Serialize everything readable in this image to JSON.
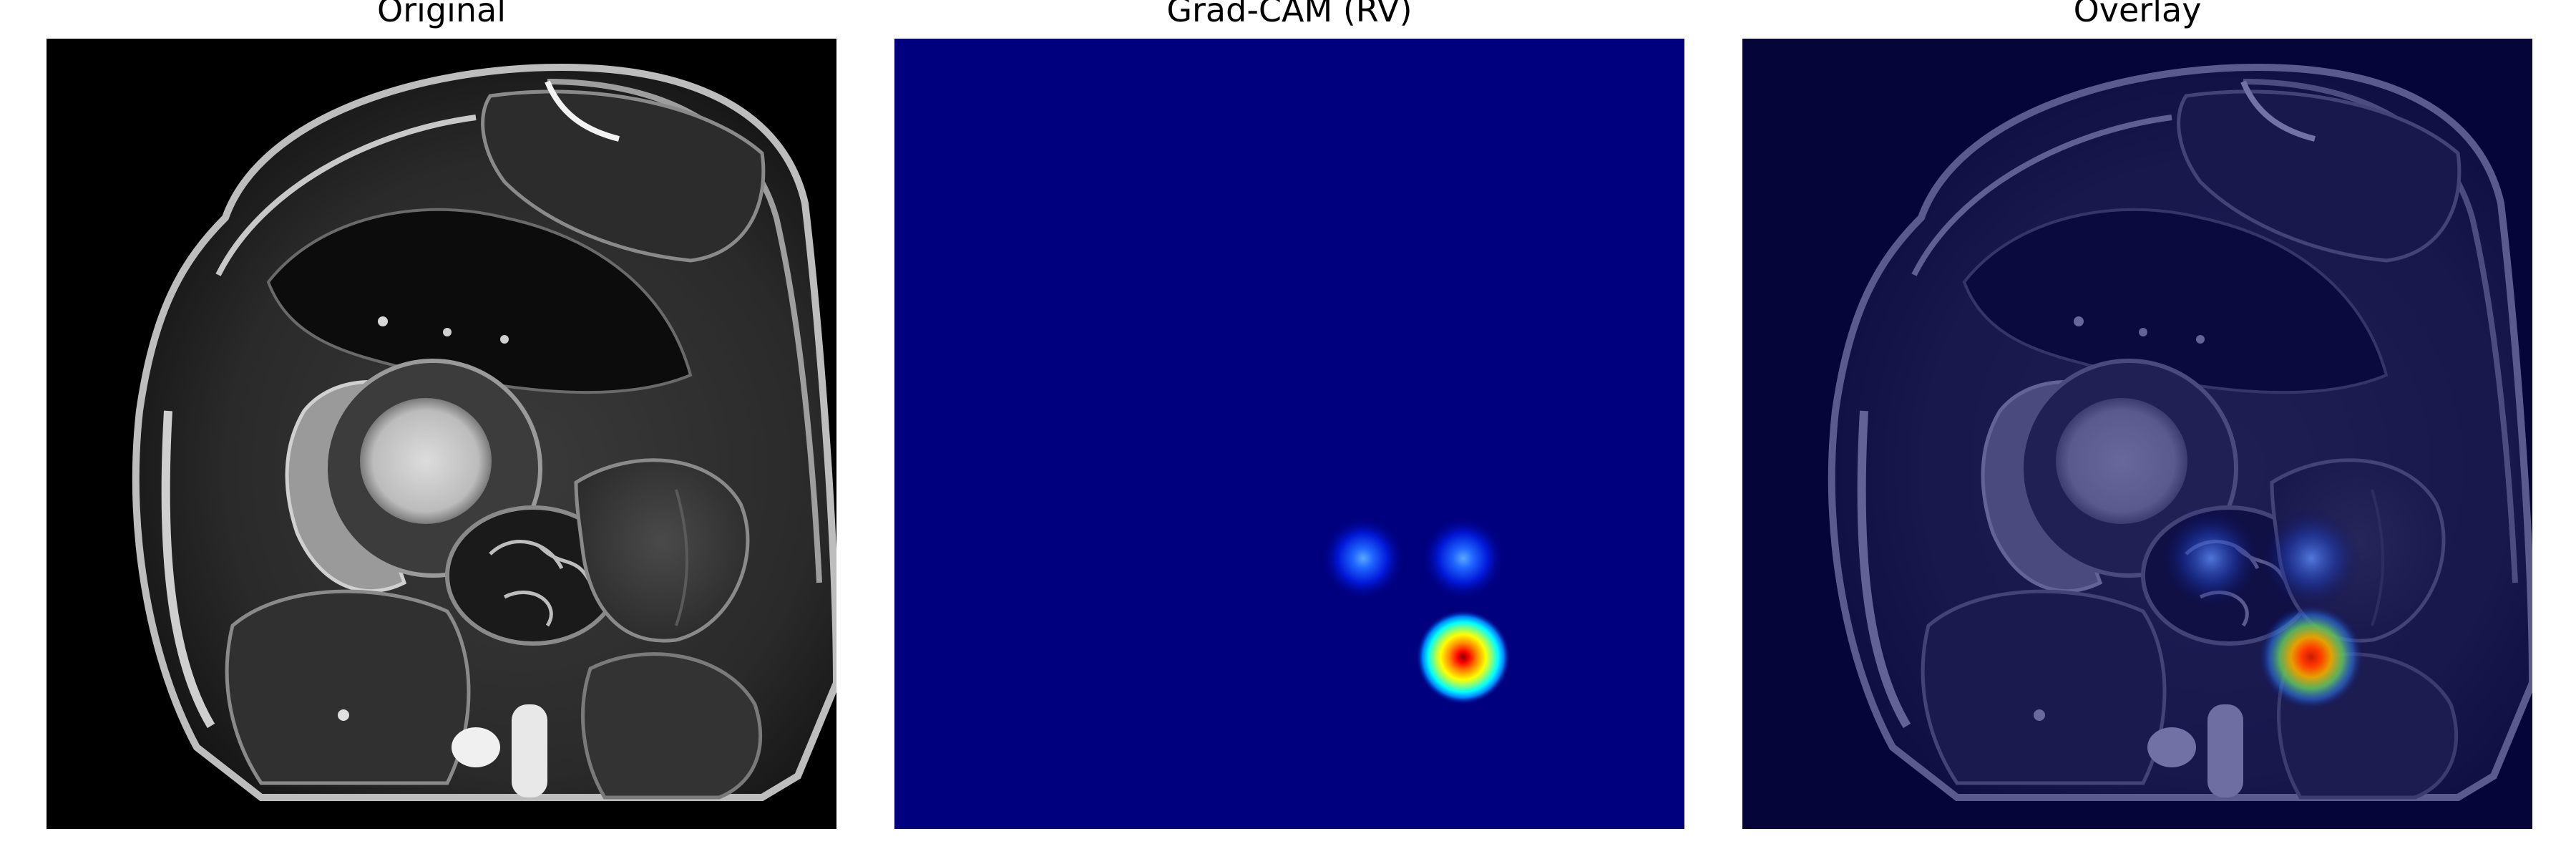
{
  "panels": [
    {
      "title": "Original"
    },
    {
      "title": "Grad-CAM (RV)"
    },
    {
      "title": "Overlay"
    }
  ],
  "colors": {
    "background": "#000000",
    "heatmap_base": "#00007f",
    "heatmap_peak": "#ff0000",
    "heatmap_mid": "#ffff00",
    "overlay_tint": "#0a0a5a"
  },
  "heatmap": {
    "colormap": "jet",
    "hotspots": [
      {
        "label": "strong",
        "intensity": 1.0
      },
      {
        "label": "weak-left",
        "intensity": 0.28
      },
      {
        "label": "weak-right",
        "intensity": 0.28
      }
    ]
  }
}
